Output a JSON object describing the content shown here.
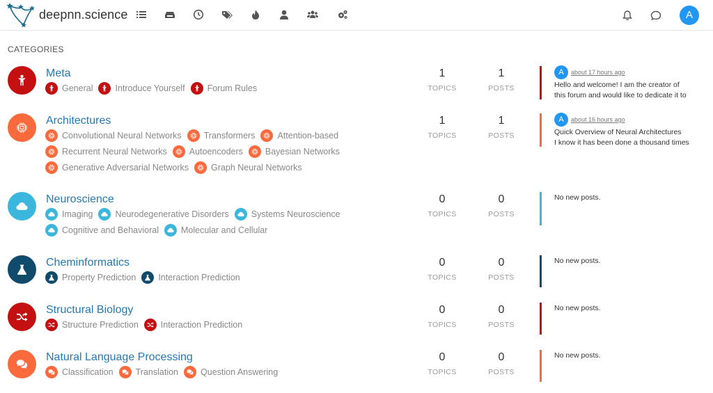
{
  "header": {
    "brand": "deepnn.science",
    "avatar_letter": "A"
  },
  "section_title": "CATEGORIES",
  "labels": {
    "topics": "TOPICS",
    "posts": "POSTS",
    "no_posts": "No new posts."
  },
  "categories": [
    {
      "name": "Meta",
      "color": "#c41010",
      "icon": "user-stand-icon",
      "topics": "1",
      "posts": "1",
      "subs": [
        "General",
        "Introduce Yourself",
        "Forum Rules"
      ],
      "last": {
        "avatar": "A",
        "time": "about 17 hours ago",
        "line1": "Hello and welcome! I am the creator of",
        "line2": "this forum and would like to dedicate it to"
      }
    },
    {
      "name": "Architectures",
      "color": "#fa6a3c",
      "icon": "brain-chip-icon",
      "topics": "1",
      "posts": "1",
      "subs": [
        "Convolutional Neural Networks",
        "Transformers",
        "Attention-based",
        "Recurrent Neural Networks",
        "Autoencoders",
        "Bayesian Networks",
        "Generative Adversarial Networks",
        "Graph Neural Networks"
      ],
      "last": {
        "avatar": "A",
        "time": "about 16 hours ago",
        "line1": "Quick Overview of Neural Architectures",
        "line2": "I know it has been done a thousand times"
      }
    },
    {
      "name": "Neuroscience",
      "color": "#3bb6dc",
      "icon": "cloud-icon",
      "topics": "0",
      "posts": "0",
      "subs": [
        "Imaging",
        "Neurodegenerative Disorders",
        "Systems Neuroscience",
        "Cognitive and Behavioral",
        "Molecular and Cellular"
      ]
    },
    {
      "name": "Cheminformatics",
      "color": "#114b6b",
      "icon": "flask-icon",
      "topics": "0",
      "posts": "0",
      "subs": [
        "Property Prediction",
        "Interaction Prediction"
      ]
    },
    {
      "name": "Structural Biology",
      "color": "#c41010",
      "icon": "shuffle-icon",
      "topics": "0",
      "posts": "0",
      "subs": [
        "Structure Prediction",
        "Interaction Prediction"
      ]
    },
    {
      "name": "Natural Language Processing",
      "color": "#fa6a3c",
      "icon": "comments-icon",
      "topics": "0",
      "posts": "0",
      "subs": [
        "Classification",
        "Translation",
        "Question Answering"
      ]
    }
  ]
}
